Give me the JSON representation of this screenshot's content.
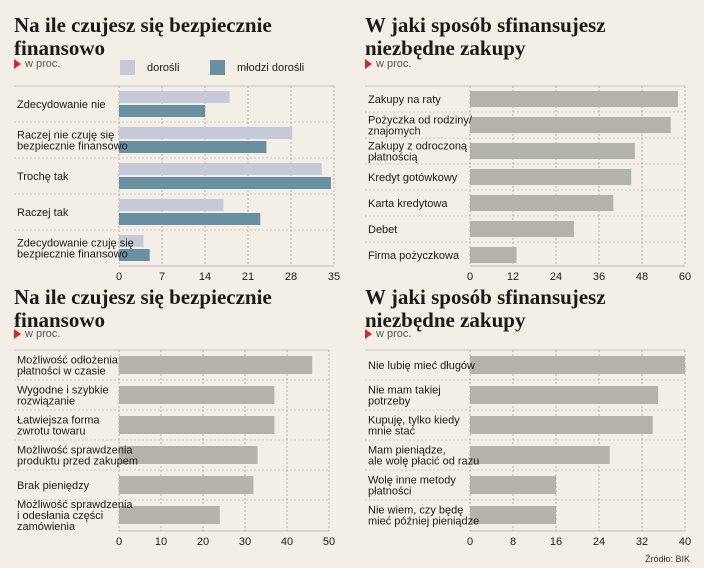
{
  "source": "Źródło: BIK",
  "chart_data": [
    {
      "type": "bar",
      "title": "Na ile czujesz się bezpiecznie\nfinansowo",
      "subtitle": "w proc.",
      "categories": [
        "Zdecydowanie nie",
        "Raczej nie czuję się\nbezpiecznie finansowo",
        "Trochę tak",
        "Raczej tak",
        "Zdecydowanie czuję się\nbezpiecznie finansowo"
      ],
      "series": [
        {
          "name": "dorośli",
          "color": "#c5c9d8",
          "values": [
            18,
            28.2,
            33,
            17,
            4
          ]
        },
        {
          "name": "młodzi dorośli",
          "color": "#6890a0",
          "values": [
            14,
            24,
            34.5,
            23,
            5
          ]
        }
      ],
      "ticks": [
        0,
        7,
        14,
        21,
        28,
        35
      ],
      "xlim": [
        0,
        35
      ],
      "grid": true,
      "legend": "top"
    },
    {
      "type": "bar",
      "title": "W jaki sposób sfinansujesz\nniezbędne zakupy",
      "subtitle": "w proc.",
      "categories": [
        "Zakupy na raty",
        "Pożyczka od rodziny/\nznajomych",
        "Zakupy z odroczoną\npłatnością",
        "Kredyt gotówkowy",
        "Karta kredytowa",
        "Debet",
        "Firma pożyczkowa"
      ],
      "series": [
        {
          "color": "#b4b3a9",
          "values": [
            58,
            56,
            46,
            45,
            40,
            29,
            13
          ]
        }
      ],
      "ticks": [
        0,
        12,
        24,
        36,
        48,
        60
      ],
      "xlim": [
        0,
        60
      ],
      "grid": true
    },
    {
      "type": "bar",
      "title": "Na ile czujesz się bezpiecznie\nfinansowo",
      "subtitle": "w proc.",
      "categories": [
        "Możliwość odłożenia\npłatności w czasie",
        "Wygodne i szybkie\nrozwiązanie",
        "Łatwiejsza forma\nzwrotu towaru",
        "Możliwość sprawdzenia\nproduktu przed zakupem",
        "Brak pieniędzy",
        "Możliwość sprawdzenia\ni odesłania części\nzamówienia"
      ],
      "series": [
        {
          "color": "#b4b3a9",
          "values": [
            46,
            37,
            37,
            33,
            32,
            24
          ]
        }
      ],
      "ticks": [
        0,
        10,
        20,
        30,
        40,
        50
      ],
      "xlim": [
        0,
        50
      ],
      "grid": true
    },
    {
      "type": "bar",
      "title": "W jaki sposób sfinansujesz\nniezbędne zakupy",
      "subtitle": "w proc.",
      "categories": [
        "Nie lubię mieć długów",
        "Nie mam takiej\npotrzeby",
        "Kupuję, tylko kiedy\nmnie stać",
        "Mam pieniądze,\nale wolę płacić od razu",
        "Wolę inne metody\npłatności",
        "Nie wiem, czy będę\nmieć później pieniądze"
      ],
      "series": [
        {
          "color": "#b4b3a9",
          "values": [
            40,
            35,
            34,
            26,
            16,
            16
          ]
        }
      ],
      "ticks": [
        0,
        8,
        16,
        24,
        32,
        40
      ],
      "xlim": [
        0,
        40
      ],
      "grid": true
    }
  ]
}
